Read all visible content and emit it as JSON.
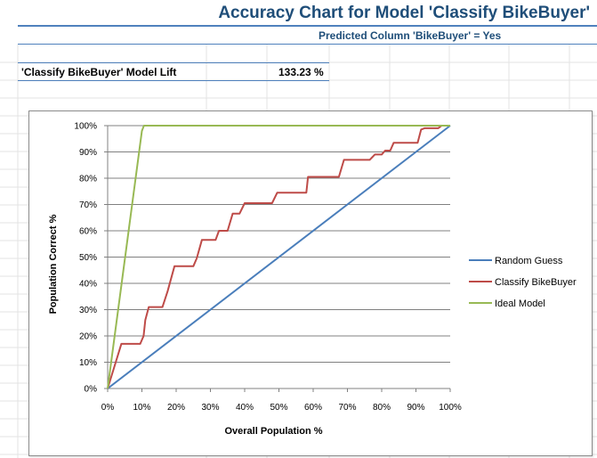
{
  "header": {
    "title": "Accuracy Chart for Model 'Classify BikeBuyer'",
    "subtitle": "Predicted Column 'BikeBuyer' = Yes"
  },
  "lift": {
    "label": "'Classify BikeBuyer' Model Lift",
    "value": "133.23 %"
  },
  "colors": {
    "random_guess": "#4a7ebb",
    "classify_bikebuyer": "#be4b48",
    "ideal_model": "#98b954",
    "gridline": "#808080",
    "header_text": "#1f4e79"
  },
  "chart_data": {
    "type": "line",
    "xlabel": "Overall Population %",
    "ylabel": "Population Correct %",
    "xlim": [
      0,
      100
    ],
    "ylim": [
      0,
      100
    ],
    "x_ticks": [
      "0%",
      "10%",
      "20%",
      "30%",
      "40%",
      "50%",
      "60%",
      "70%",
      "80%",
      "90%",
      "100%"
    ],
    "y_ticks": [
      "0%",
      "10%",
      "20%",
      "30%",
      "40%",
      "50%",
      "60%",
      "70%",
      "80%",
      "90%",
      "100%"
    ],
    "grid": "horizontal",
    "legend_position": "right",
    "series": [
      {
        "name": "Random Guess",
        "color": "#4a7ebb",
        "points": [
          [
            0,
            0
          ],
          [
            100,
            100
          ]
        ]
      },
      {
        "name": "Classify BikeBuyer",
        "color": "#be4b48",
        "points": [
          [
            0,
            0
          ],
          [
            4,
            17
          ],
          [
            9.5,
            17
          ],
          [
            10.5,
            20
          ],
          [
            11,
            26
          ],
          [
            12,
            31
          ],
          [
            16,
            31
          ],
          [
            17.5,
            37
          ],
          [
            19.5,
            46.5
          ],
          [
            25,
            46.5
          ],
          [
            26,
            49.5
          ],
          [
            27.5,
            56.5
          ],
          [
            31.5,
            56.5
          ],
          [
            32.5,
            60
          ],
          [
            35,
            60
          ],
          [
            36.5,
            66.5
          ],
          [
            38.5,
            66.5
          ],
          [
            40,
            70.5
          ],
          [
            48,
            70.5
          ],
          [
            49.5,
            74.5
          ],
          [
            58,
            74.5
          ],
          [
            58.5,
            80.5
          ],
          [
            67.5,
            80.5
          ],
          [
            69,
            87
          ],
          [
            76.5,
            87
          ],
          [
            78,
            89
          ],
          [
            80,
            89
          ],
          [
            81,
            90.5
          ],
          [
            82.5,
            90.5
          ],
          [
            83.5,
            93.5
          ],
          [
            90.5,
            93.5
          ],
          [
            91.5,
            98.5
          ],
          [
            92.5,
            99
          ],
          [
            96.5,
            99
          ],
          [
            97.5,
            100
          ],
          [
            100,
            100
          ]
        ]
      },
      {
        "name": "Ideal Model",
        "color": "#98b954",
        "points": [
          [
            0,
            0
          ],
          [
            10,
            98
          ],
          [
            10.6,
            100
          ],
          [
            100,
            100
          ]
        ]
      }
    ]
  }
}
